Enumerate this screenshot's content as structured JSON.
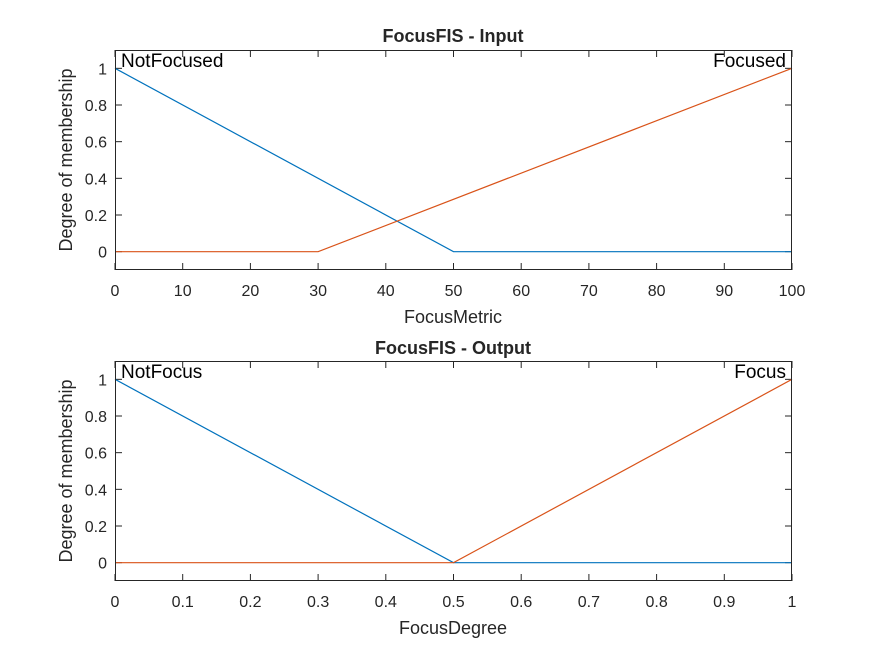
{
  "chart_data": [
    {
      "type": "line",
      "title": "FocusFIS - Input",
      "xlabel": "FocusMetric",
      "ylabel": "Degree of membership",
      "xlim": [
        0,
        100
      ],
      "ylim": [
        -0.1,
        1.1
      ],
      "xticks": [
        0,
        10,
        20,
        30,
        40,
        50,
        60,
        70,
        80,
        90,
        100
      ],
      "xtick_labels": [
        "0",
        "10",
        "20",
        "30",
        "40",
        "50",
        "60",
        "70",
        "80",
        "90",
        "100"
      ],
      "yticks": [
        0,
        0.2,
        0.4,
        0.6,
        0.8,
        1
      ],
      "ytick_labels": [
        "0",
        "0.2",
        "0.4",
        "0.6",
        "0.8",
        "1"
      ],
      "grid": false,
      "series": [
        {
          "name": "NotFocused",
          "color": "#0072BD",
          "x": [
            0,
            50,
            100
          ],
          "y": [
            1,
            0,
            0
          ]
        },
        {
          "name": "Focused",
          "color": "#D95319",
          "x": [
            0,
            30,
            100
          ],
          "y": [
            0,
            0,
            1
          ]
        }
      ]
    },
    {
      "type": "line",
      "title": "FocusFIS - Output",
      "xlabel": "FocusDegree",
      "ylabel": "Degree of membership",
      "xlim": [
        0,
        1
      ],
      "ylim": [
        -0.1,
        1.1
      ],
      "xticks": [
        0,
        0.1,
        0.2,
        0.3,
        0.4,
        0.5,
        0.6,
        0.7,
        0.8,
        0.9,
        1
      ],
      "xtick_labels": [
        "0",
        "0.1",
        "0.2",
        "0.3",
        "0.4",
        "0.5",
        "0.6",
        "0.7",
        "0.8",
        "0.9",
        "1"
      ],
      "yticks": [
        0,
        0.2,
        0.4,
        0.6,
        0.8,
        1
      ],
      "ytick_labels": [
        "0",
        "0.2",
        "0.4",
        "0.6",
        "0.8",
        "1"
      ],
      "grid": false,
      "series": [
        {
          "name": "NotFocus",
          "color": "#0072BD",
          "x": [
            0,
            0.5,
            1
          ],
          "y": [
            1,
            0,
            0
          ]
        },
        {
          "name": "Focus",
          "color": "#D95319",
          "x": [
            0,
            0.5,
            1
          ],
          "y": [
            0,
            0,
            1
          ]
        }
      ]
    }
  ]
}
